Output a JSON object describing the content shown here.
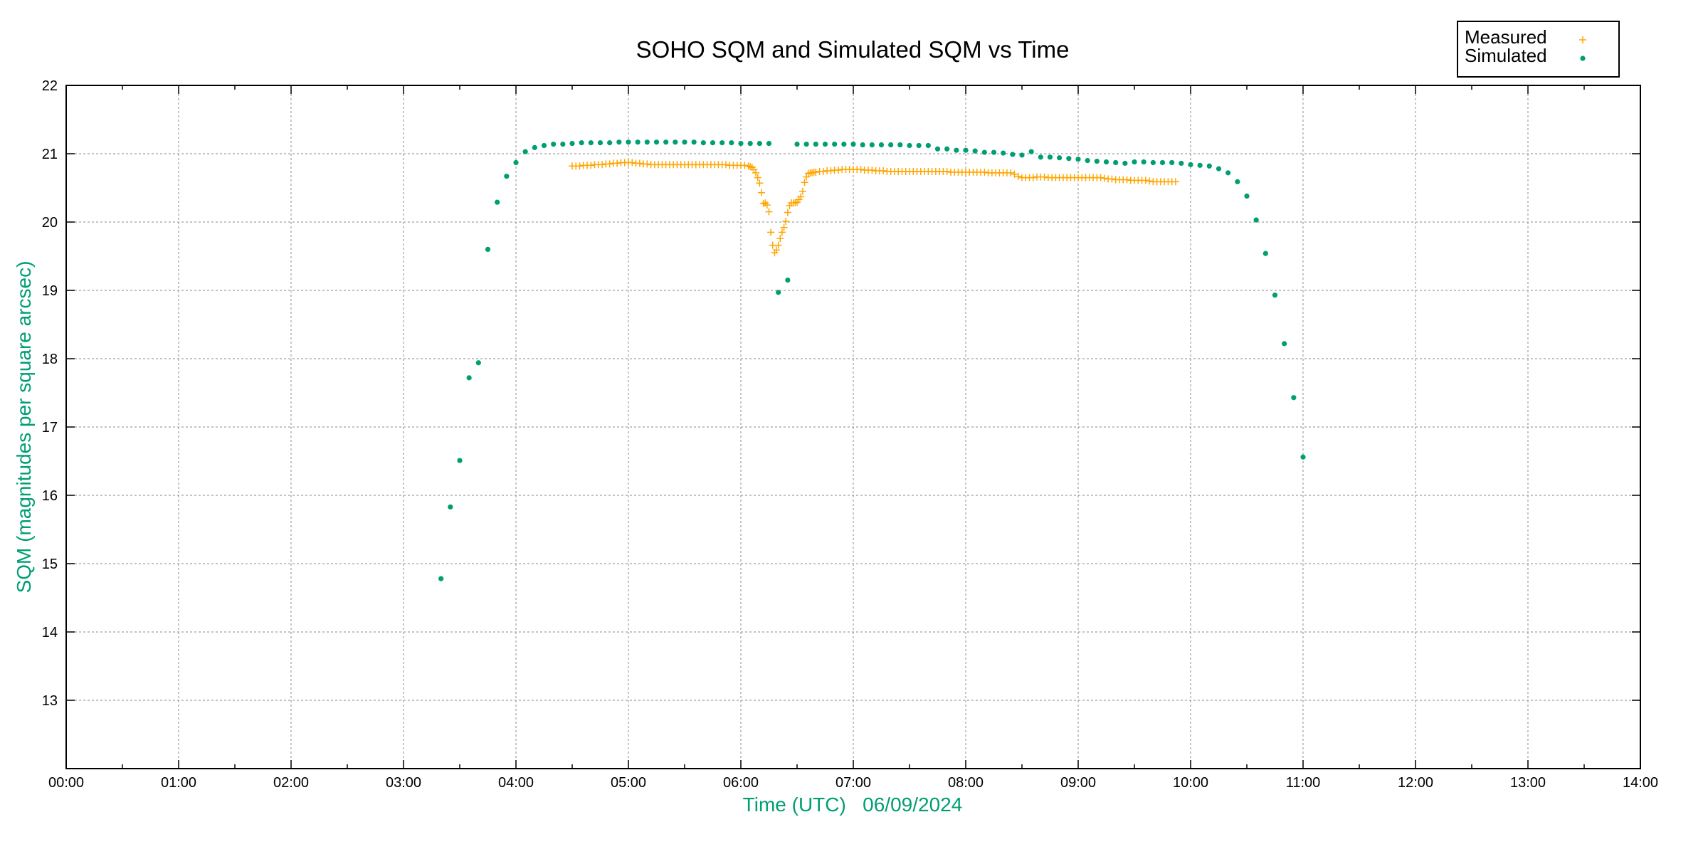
{
  "chart_data": {
    "type": "scatter",
    "title": "SOHO SQM and Simulated SQM vs Time",
    "xlabel": "Time (UTC)   06/09/2024",
    "ylabel": "SQM (magnitudes per square arcsec)",
    "xlim": [
      "00:00",
      "14:00"
    ],
    "ylim": [
      12,
      22
    ],
    "x_ticks": [
      "00:00",
      "01:00",
      "02:00",
      "03:00",
      "04:00",
      "05:00",
      "06:00",
      "07:00",
      "08:00",
      "09:00",
      "10:00",
      "11:00",
      "12:00",
      "13:00",
      "14:00"
    ],
    "y_ticks": [
      "13",
      "14",
      "15",
      "16",
      "17",
      "18",
      "19",
      "20",
      "21",
      "22"
    ],
    "grid": true,
    "legend_position": "top-right, outside plot",
    "colors": {
      "measured": "#ffa500",
      "simulated": "#009e73",
      "axis_label": "#009e73",
      "grid": "#a0a0a0"
    },
    "series": [
      {
        "name": "Measured",
        "marker": "plus",
        "points": [
          [
            "04:30",
            20.82
          ],
          [
            "04:32",
            20.82
          ],
          [
            "04:34",
            20.82
          ],
          [
            "04:36",
            20.83
          ],
          [
            "04:38",
            20.83
          ],
          [
            "04:40",
            20.83
          ],
          [
            "04:42",
            20.84
          ],
          [
            "04:44",
            20.84
          ],
          [
            "04:46",
            20.84
          ],
          [
            "04:48",
            20.85
          ],
          [
            "04:50",
            20.85
          ],
          [
            "04:52",
            20.86
          ],
          [
            "04:54",
            20.86
          ],
          [
            "04:56",
            20.87
          ],
          [
            "04:58",
            20.87
          ],
          [
            "05:00",
            20.87
          ],
          [
            "05:02",
            20.87
          ],
          [
            "05:04",
            20.86
          ],
          [
            "05:06",
            20.86
          ],
          [
            "05:08",
            20.85
          ],
          [
            "05:10",
            20.85
          ],
          [
            "05:12",
            20.84
          ],
          [
            "05:14",
            20.84
          ],
          [
            "05:16",
            20.84
          ],
          [
            "05:18",
            20.84
          ],
          [
            "05:20",
            20.84
          ],
          [
            "05:22",
            20.84
          ],
          [
            "05:24",
            20.84
          ],
          [
            "05:26",
            20.84
          ],
          [
            "05:28",
            20.84
          ],
          [
            "05:30",
            20.84
          ],
          [
            "05:32",
            20.84
          ],
          [
            "05:34",
            20.84
          ],
          [
            "05:36",
            20.84
          ],
          [
            "05:38",
            20.84
          ],
          [
            "05:40",
            20.84
          ],
          [
            "05:42",
            20.84
          ],
          [
            "05:44",
            20.84
          ],
          [
            "05:46",
            20.84
          ],
          [
            "05:48",
            20.84
          ],
          [
            "05:50",
            20.84
          ],
          [
            "05:52",
            20.84
          ],
          [
            "05:54",
            20.83
          ],
          [
            "05:56",
            20.83
          ],
          [
            "05:58",
            20.83
          ],
          [
            "06:00",
            20.83
          ],
          [
            "06:02",
            20.83
          ],
          [
            "06:04",
            20.82
          ],
          [
            "06:05",
            20.81
          ],
          [
            "06:06",
            20.8
          ],
          [
            "06:07",
            20.77
          ],
          [
            "06:08",
            20.72
          ],
          [
            "06:09",
            20.65
          ],
          [
            "06:10",
            20.57
          ],
          [
            "06:11",
            20.43
          ],
          [
            "06:12",
            20.27
          ],
          [
            "06:13",
            20.28
          ],
          [
            "06:14",
            20.25
          ],
          [
            "06:15",
            20.15
          ],
          [
            "06:16",
            19.85
          ],
          [
            "06:17",
            19.66
          ],
          [
            "06:18",
            19.55
          ],
          [
            "06:19",
            19.59
          ],
          [
            "06:20",
            19.66
          ],
          [
            "06:21",
            19.76
          ],
          [
            "06:22",
            19.85
          ],
          [
            "06:23",
            19.92
          ],
          [
            "06:24",
            20.01
          ],
          [
            "06:25",
            20.14
          ],
          [
            "06:26",
            20.24
          ],
          [
            "06:27",
            20.28
          ],
          [
            "06:28",
            20.28
          ],
          [
            "06:29",
            20.28
          ],
          [
            "06:30",
            20.29
          ],
          [
            "06:31",
            20.33
          ],
          [
            "06:32",
            20.37
          ],
          [
            "06:33",
            20.45
          ],
          [
            "06:34",
            20.58
          ],
          [
            "06:35",
            20.66
          ],
          [
            "06:36",
            20.71
          ],
          [
            "06:37",
            20.72
          ],
          [
            "06:38",
            20.72
          ],
          [
            "06:39",
            20.73
          ],
          [
            "06:40",
            20.73
          ],
          [
            "06:42",
            20.74
          ],
          [
            "06:44",
            20.74
          ],
          [
            "06:46",
            20.75
          ],
          [
            "06:48",
            20.75
          ],
          [
            "06:50",
            20.76
          ],
          [
            "06:52",
            20.76
          ],
          [
            "06:54",
            20.77
          ],
          [
            "06:56",
            20.77
          ],
          [
            "06:58",
            20.77
          ],
          [
            "07:00",
            20.77
          ],
          [
            "07:02",
            20.77
          ],
          [
            "07:04",
            20.77
          ],
          [
            "07:06",
            20.76
          ],
          [
            "07:08",
            20.76
          ],
          [
            "07:10",
            20.76
          ],
          [
            "07:12",
            20.75
          ],
          [
            "07:14",
            20.75
          ],
          [
            "07:16",
            20.75
          ],
          [
            "07:18",
            20.74
          ],
          [
            "07:20",
            20.74
          ],
          [
            "07:22",
            20.74
          ],
          [
            "07:24",
            20.74
          ],
          [
            "07:26",
            20.74
          ],
          [
            "07:28",
            20.74
          ],
          [
            "07:30",
            20.74
          ],
          [
            "07:32",
            20.74
          ],
          [
            "07:34",
            20.74
          ],
          [
            "07:36",
            20.74
          ],
          [
            "07:38",
            20.74
          ],
          [
            "07:40",
            20.74
          ],
          [
            "07:42",
            20.74
          ],
          [
            "07:44",
            20.74
          ],
          [
            "07:46",
            20.74
          ],
          [
            "07:48",
            20.74
          ],
          [
            "07:50",
            20.74
          ],
          [
            "07:52",
            20.73
          ],
          [
            "07:54",
            20.73
          ],
          [
            "07:56",
            20.73
          ],
          [
            "07:58",
            20.73
          ],
          [
            "08:00",
            20.73
          ],
          [
            "08:02",
            20.73
          ],
          [
            "08:04",
            20.73
          ],
          [
            "08:06",
            20.73
          ],
          [
            "08:08",
            20.73
          ],
          [
            "08:10",
            20.73
          ],
          [
            "08:12",
            20.72
          ],
          [
            "08:14",
            20.72
          ],
          [
            "08:16",
            20.72
          ],
          [
            "08:18",
            20.72
          ],
          [
            "08:20",
            20.72
          ],
          [
            "08:22",
            20.72
          ],
          [
            "08:24",
            20.72
          ],
          [
            "08:26",
            20.7
          ],
          [
            "08:28",
            20.67
          ],
          [
            "08:30",
            20.65
          ],
          [
            "08:32",
            20.65
          ],
          [
            "08:34",
            20.65
          ],
          [
            "08:36",
            20.65
          ],
          [
            "08:38",
            20.66
          ],
          [
            "08:40",
            20.66
          ],
          [
            "08:42",
            20.66
          ],
          [
            "08:44",
            20.65
          ],
          [
            "08:46",
            20.65
          ],
          [
            "08:48",
            20.65
          ],
          [
            "08:50",
            20.65
          ],
          [
            "08:52",
            20.65
          ],
          [
            "08:54",
            20.65
          ],
          [
            "08:56",
            20.65
          ],
          [
            "08:58",
            20.65
          ],
          [
            "09:00",
            20.65
          ],
          [
            "09:02",
            20.65
          ],
          [
            "09:04",
            20.65
          ],
          [
            "09:06",
            20.65
          ],
          [
            "09:08",
            20.65
          ],
          [
            "09:10",
            20.65
          ],
          [
            "09:12",
            20.65
          ],
          [
            "09:14",
            20.64
          ],
          [
            "09:16",
            20.63
          ],
          [
            "09:18",
            20.63
          ],
          [
            "09:20",
            20.62
          ],
          [
            "09:22",
            20.62
          ],
          [
            "09:24",
            20.62
          ],
          [
            "09:26",
            20.62
          ],
          [
            "09:28",
            20.61
          ],
          [
            "09:30",
            20.61
          ],
          [
            "09:32",
            20.61
          ],
          [
            "09:34",
            20.61
          ],
          [
            "09:36",
            20.61
          ],
          [
            "09:38",
            20.6
          ],
          [
            "09:40",
            20.59
          ],
          [
            "09:42",
            20.59
          ],
          [
            "09:44",
            20.59
          ],
          [
            "09:46",
            20.59
          ],
          [
            "09:48",
            20.59
          ],
          [
            "09:50",
            20.59
          ],
          [
            "09:52",
            20.59
          ]
        ]
      },
      {
        "name": "Simulated",
        "marker": "filled-circle",
        "points": [
          [
            "03:20",
            14.78
          ],
          [
            "03:25",
            15.83
          ],
          [
            "03:30",
            16.51
          ],
          [
            "03:35",
            17.72
          ],
          [
            "03:40",
            17.94
          ],
          [
            "03:45",
            19.6
          ],
          [
            "03:50",
            20.29
          ],
          [
            "03:55",
            20.67
          ],
          [
            "04:00",
            20.87
          ],
          [
            "04:05",
            21.03
          ],
          [
            "04:10",
            21.09
          ],
          [
            "04:15",
            21.12
          ],
          [
            "04:20",
            21.14
          ],
          [
            "04:25",
            21.14
          ],
          [
            "04:30",
            21.15
          ],
          [
            "04:35",
            21.16
          ],
          [
            "04:40",
            21.16
          ],
          [
            "04:45",
            21.16
          ],
          [
            "04:50",
            21.16
          ],
          [
            "04:55",
            21.17
          ],
          [
            "05:00",
            21.17
          ],
          [
            "05:05",
            21.17
          ],
          [
            "05:10",
            21.17
          ],
          [
            "05:15",
            21.17
          ],
          [
            "05:20",
            21.17
          ],
          [
            "05:25",
            21.17
          ],
          [
            "05:30",
            21.17
          ],
          [
            "05:35",
            21.17
          ],
          [
            "05:40",
            21.16
          ],
          [
            "05:45",
            21.16
          ],
          [
            "05:50",
            21.16
          ],
          [
            "05:55",
            21.16
          ],
          [
            "06:00",
            21.15
          ],
          [
            "06:05",
            21.15
          ],
          [
            "06:10",
            21.15
          ],
          [
            "06:15",
            21.15
          ],
          [
            "06:20",
            18.97
          ],
          [
            "06:25",
            19.15
          ],
          [
            "06:30",
            21.14
          ],
          [
            "06:35",
            21.14
          ],
          [
            "06:40",
            21.14
          ],
          [
            "06:45",
            21.14
          ],
          [
            "06:50",
            21.14
          ],
          [
            "06:55",
            21.14
          ],
          [
            "07:00",
            21.14
          ],
          [
            "07:05",
            21.13
          ],
          [
            "07:10",
            21.13
          ],
          [
            "07:15",
            21.13
          ],
          [
            "07:20",
            21.13
          ],
          [
            "07:25",
            21.13
          ],
          [
            "07:30",
            21.12
          ],
          [
            "07:35",
            21.12
          ],
          [
            "07:40",
            21.12
          ],
          [
            "07:45",
            21.07
          ],
          [
            "07:50",
            21.07
          ],
          [
            "07:55",
            21.05
          ],
          [
            "08:00",
            21.05
          ],
          [
            "08:05",
            21.04
          ],
          [
            "08:10",
            21.02
          ],
          [
            "08:15",
            21.02
          ],
          [
            "08:20",
            21.01
          ],
          [
            "08:25",
            20.99
          ],
          [
            "08:30",
            20.98
          ],
          [
            "08:35",
            21.03
          ],
          [
            "08:40",
            20.95
          ],
          [
            "08:45",
            20.95
          ],
          [
            "08:50",
            20.94
          ],
          [
            "08:55",
            20.93
          ],
          [
            "09:00",
            20.92
          ],
          [
            "09:05",
            20.9
          ],
          [
            "09:10",
            20.89
          ],
          [
            "09:15",
            20.88
          ],
          [
            "09:20",
            20.87
          ],
          [
            "09:25",
            20.86
          ],
          [
            "09:30",
            20.88
          ],
          [
            "09:35",
            20.88
          ],
          [
            "09:40",
            20.87
          ],
          [
            "09:45",
            20.87
          ],
          [
            "09:50",
            20.87
          ],
          [
            "09:55",
            20.86
          ],
          [
            "10:00",
            20.84
          ],
          [
            "10:05",
            20.83
          ],
          [
            "10:10",
            20.82
          ],
          [
            "10:15",
            20.78
          ],
          [
            "10:20",
            20.72
          ],
          [
            "10:25",
            20.59
          ],
          [
            "10:30",
            20.38
          ],
          [
            "10:35",
            20.03
          ],
          [
            "10:40",
            19.54
          ],
          [
            "10:45",
            18.93
          ],
          [
            "10:50",
            18.22
          ],
          [
            "10:55",
            17.43
          ],
          [
            "11:00",
            16.56
          ]
        ]
      }
    ]
  }
}
